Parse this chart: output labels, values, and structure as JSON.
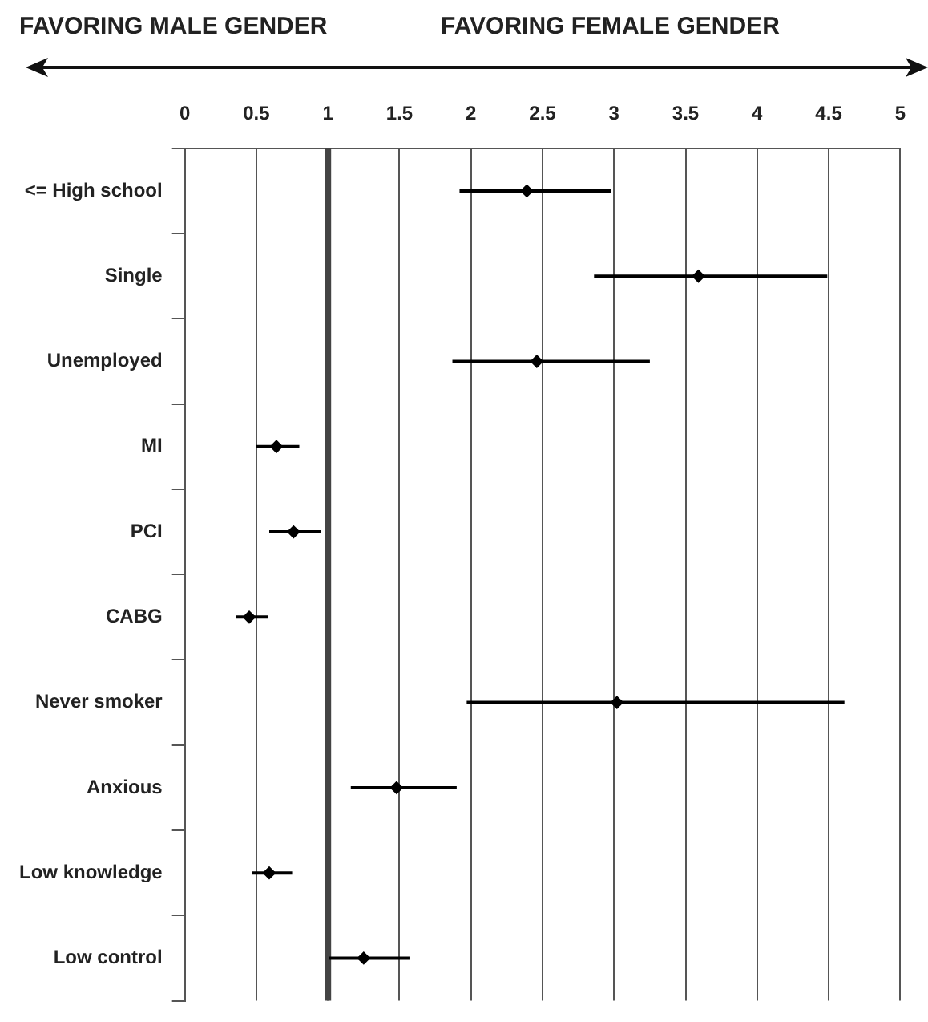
{
  "chart_data": {
    "type": "scatter",
    "orientation": "horizontal",
    "annotations": [
      "FAVORING MALE GENDER",
      "FAVORING FEMALE GENDER"
    ],
    "categories": [
      "<= High school",
      "Single",
      "Unemployed",
      "MI",
      "PCI",
      "CABG",
      "Never smoker",
      "Anxious",
      "Low knowledge",
      "Low control"
    ],
    "values": [
      2.39,
      3.59,
      2.46,
      0.64,
      0.76,
      0.45,
      3.02,
      1.48,
      0.59,
      1.25
    ],
    "errors": [
      [
        1.92,
        2.98
      ],
      [
        2.86,
        4.49
      ],
      [
        1.87,
        3.25
      ],
      [
        0.5,
        0.8
      ],
      [
        0.59,
        0.95
      ],
      [
        0.36,
        0.58
      ],
      [
        1.97,
        4.61
      ],
      [
        1.16,
        1.9
      ],
      [
        0.47,
        0.75
      ],
      [
        1.01,
        1.57
      ]
    ],
    "color": "#000000",
    "marker": "diamond",
    "xlim": [
      0,
      5
    ],
    "xticks": [
      0,
      0.5,
      1,
      1.5,
      2,
      2.5,
      3,
      3.5,
      4,
      4.5,
      5
    ],
    "ref_lines": [
      {
        "axis": "x",
        "value": 1
      }
    ],
    "grid": "x",
    "legend": false
  }
}
